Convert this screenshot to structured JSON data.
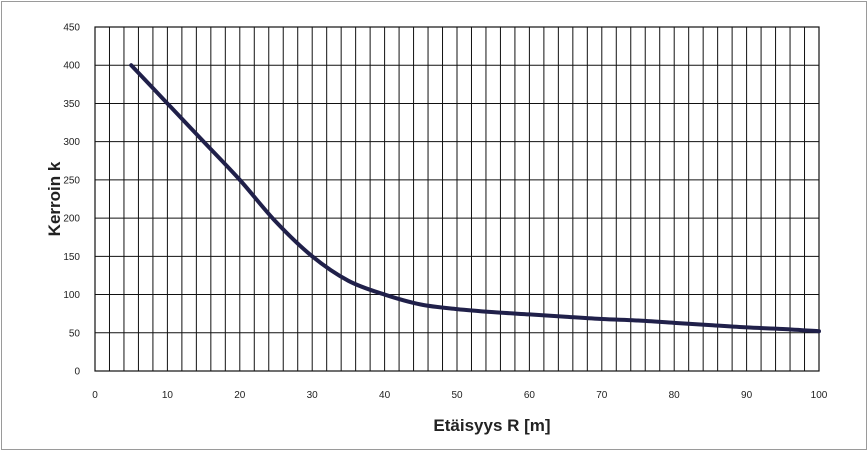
{
  "chart_data": {
    "type": "line",
    "title": "",
    "xlabel": "Etäisyys R [m]",
    "ylabel": "Kerroin k",
    "xlim": [
      0,
      100
    ],
    "ylim": [
      0,
      450
    ],
    "x_ticks": [
      0,
      10,
      20,
      30,
      40,
      50,
      60,
      70,
      80,
      90,
      100
    ],
    "y_ticks": [
      0,
      50,
      100,
      150,
      200,
      250,
      300,
      350,
      400,
      450
    ],
    "x_minor_step": 2,
    "y_major_step": 50,
    "grid": true,
    "legend": "none",
    "colors": {
      "line": "#20204a",
      "grid": "#111111"
    },
    "series": [
      {
        "x": [
          5,
          10,
          15,
          20,
          25,
          30,
          35,
          40,
          45,
          50,
          55,
          60,
          65,
          70,
          75,
          80,
          85,
          90,
          95,
          100
        ],
        "values": [
          400,
          350,
          300,
          250,
          195,
          150,
          118,
          100,
          87,
          81,
          77,
          74,
          71,
          68,
          66,
          63,
          60,
          57,
          55,
          52
        ]
      }
    ]
  }
}
